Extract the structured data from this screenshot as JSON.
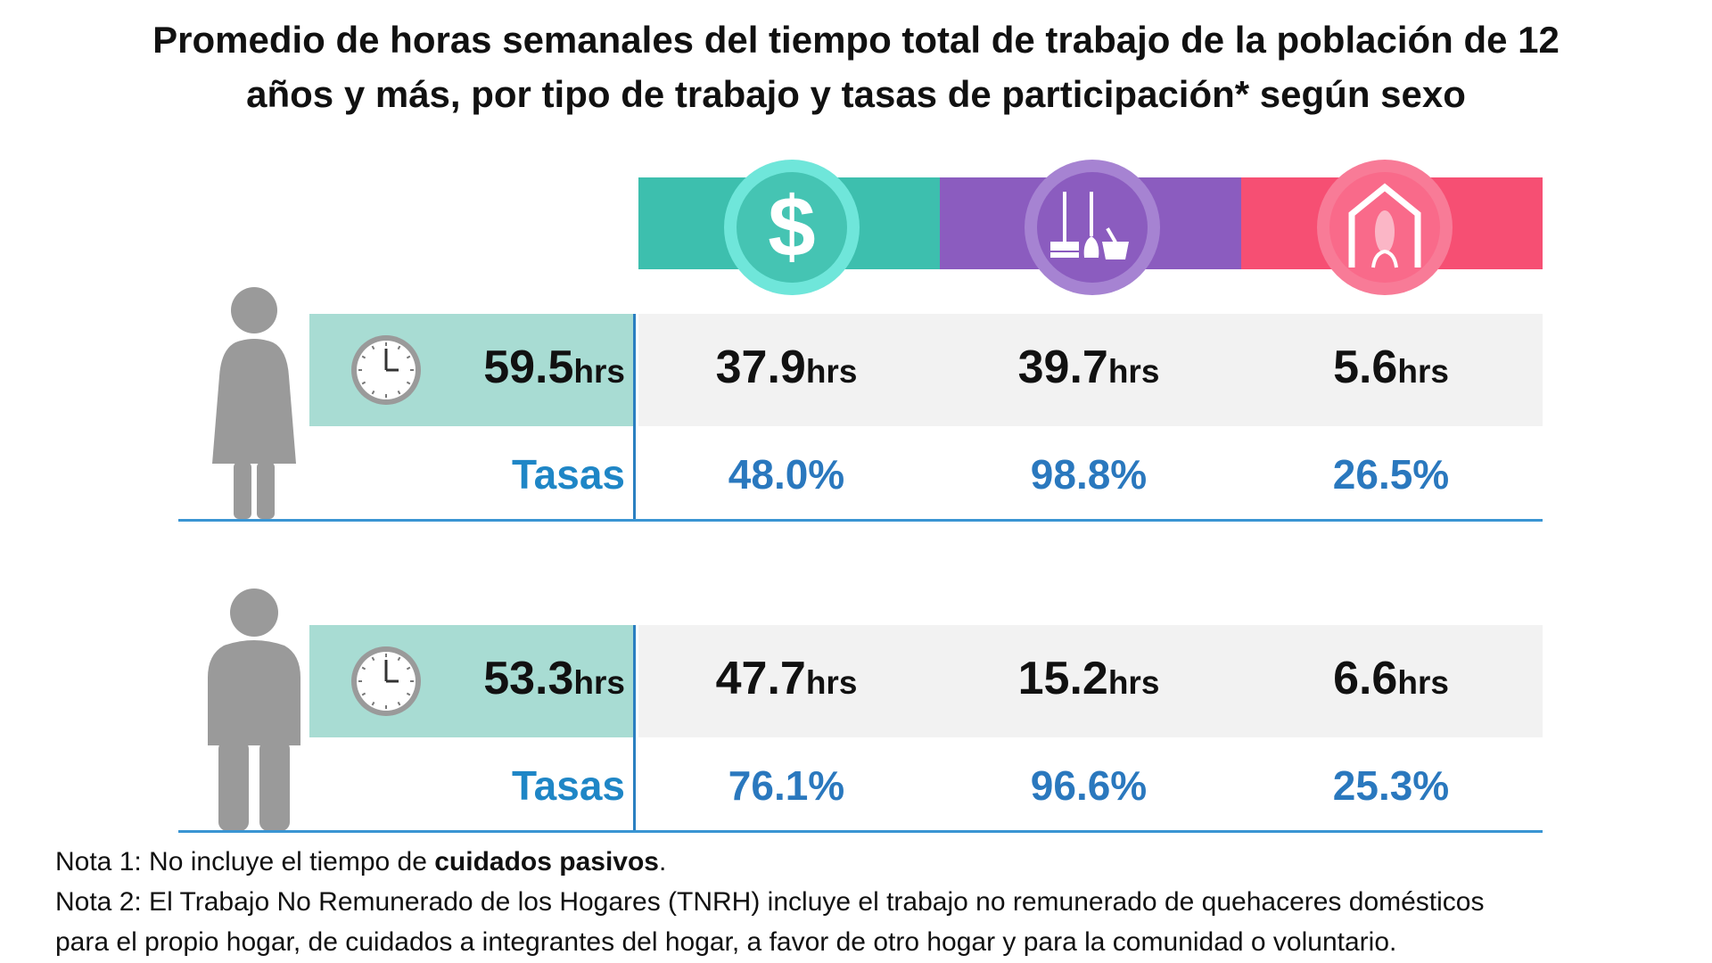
{
  "title": {
    "line1": "Promedio de horas semanales del tiempo total de trabajo de la población de 12",
    "line2": "años y más, por tipo de trabajo y tasas de participación* según sexo"
  },
  "categories": [
    {
      "icon": "dollar-icon",
      "color": "#3dbfae",
      "circle_color": "#6fe6da"
    },
    {
      "icon": "broom-bucket-icon",
      "color": "#8b5cbf",
      "circle_color": "#a683d2"
    },
    {
      "icon": "house-corn-icon",
      "color": "#f64f73",
      "circle_color": "#f87b97"
    }
  ],
  "unit": "hrs",
  "rates_label": "Tasas",
  "rows": [
    {
      "sex_icon": "woman-icon",
      "total": "59.5",
      "hours": [
        "37.9",
        "39.7",
        "5.6"
      ],
      "rates": [
        "48.0%",
        "98.8%",
        "26.5%"
      ]
    },
    {
      "sex_icon": "man-icon",
      "total": "53.3",
      "hours": [
        "47.7",
        "15.2",
        "6.6"
      ],
      "rates": [
        "76.1%",
        "96.6%",
        "25.3%"
      ]
    }
  ],
  "notes": {
    "note1_prefix": "Nota 1: No incluye el tiempo de ",
    "note1_bold": "cuidados pasivos",
    "note1_suffix": ".",
    "note2_line1": "Nota 2: El Trabajo No Remunerado de los Hogares (TNRH) incluye el trabajo no remunerado de quehaceres domésticos",
    "note2_line2": "para el propio hogar, de cuidados a integrantes del hogar, a favor de otro hogar y para la comunidad o voluntario."
  },
  "colors": {
    "total_box": "#a8dcd3",
    "row_bg": "#f2f2f2",
    "rates_text": "#2a78be",
    "lines": "#3a95d3",
    "person": "#9a9a9a"
  },
  "chart_data": {
    "type": "table",
    "title": "Promedio de horas semanales del tiempo total de trabajo de la población de 12 años y más, por tipo de trabajo y tasas de participación* según sexo",
    "rows": [
      {
        "group": "woman-icon",
        "total_hours": 59.5,
        "hours": [
          37.9,
          39.7,
          5.6
        ],
        "rates_pct": [
          48.0,
          98.8,
          26.5
        ]
      },
      {
        "group": "man-icon",
        "total_hours": 53.3,
        "hours": [
          47.7,
          15.2,
          6.6
        ],
        "rates_pct": [
          76.1,
          96.6,
          25.3
        ]
      }
    ]
  }
}
